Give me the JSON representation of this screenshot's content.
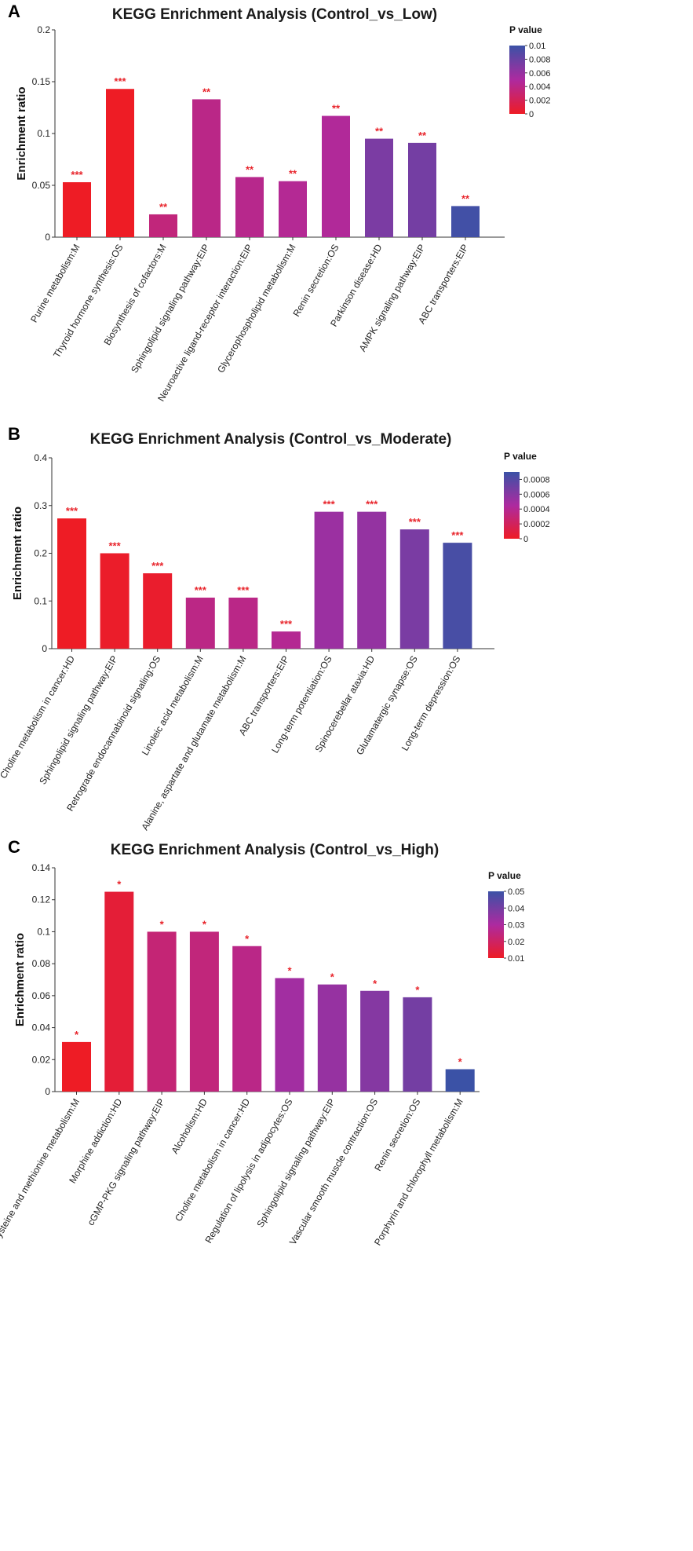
{
  "colors": {
    "low": "#ee1c25",
    "mid": "#ad2aa0",
    "high": "#3b52a6",
    "sig": "#e8242b"
  },
  "chart_data": [
    {
      "type": "bar",
      "panel_label": "A",
      "title": "KEGG Enrichment Analysis (Control_vs_Low)",
      "xlabel": "",
      "ylabel": "Enrichment ratio",
      "ylim": [
        0,
        0.2
      ],
      "yticks": [
        0,
        0.05,
        0.1,
        0.15,
        0.2
      ],
      "ytick_labels": [
        "0",
        "0.05",
        "0.1",
        "0.15",
        "0.2"
      ],
      "categories": [
        "Purine metabolism:M",
        "Thyroid hormone synthesis:OS",
        "Biosynthesis of cofactors:M",
        "Sphingolipid signaling pathway:EIP",
        "Neuroactive ligand-receptor interaction:EIP",
        "Glycerophospholipid metabolism:M",
        "Renin secretion:OS",
        "Parkinson disease:HD",
        "AMPK signaling pathway:EIP",
        "ABC transporters:EIP"
      ],
      "values": [
        0.053,
        0.143,
        0.022,
        0.133,
        0.058,
        0.054,
        0.117,
        0.095,
        0.091,
        0.03
      ],
      "pvalues": [
        0.0,
        0.0,
        0.0035,
        0.004,
        0.0042,
        0.0045,
        0.0047,
        0.0072,
        0.0075,
        0.0097
      ],
      "significance": [
        "***",
        "***",
        "**",
        "**",
        "**",
        "**",
        "**",
        "**",
        "**",
        "**"
      ],
      "legend": {
        "title": "P value",
        "placement": "right",
        "range": [
          0,
          0.01
        ],
        "ticks": [
          0,
          0.002,
          0.004,
          0.006,
          0.008,
          0.01
        ],
        "tick_labels": [
          "0",
          "0.002",
          "0.004",
          "0.006",
          "0.008",
          "0.01"
        ]
      }
    },
    {
      "type": "bar",
      "panel_label": "B",
      "title": "KEGG Enrichment Analysis (Control_vs_Moderate)",
      "xlabel": "",
      "ylabel": "Enrichment ratio",
      "ylim": [
        0,
        0.4
      ],
      "yticks": [
        0,
        0.1,
        0.2,
        0.3,
        0.4
      ],
      "ytick_labels": [
        "0",
        "0.1",
        "0.2",
        "0.3",
        "0.4"
      ],
      "categories": [
        "Choline metabolism in cancer:HD",
        "Sphingolipid signaling pathway:EIP",
        "Retrograde endocannabinoid signaling:OS",
        "Linoleic acid metabolism:M",
        "Alanine, aspartate and glutamate metabolism:M",
        "ABC transporters:EIP",
        "Long-term potentiation:OS",
        "Spinocerebellar ataxia:HD",
        "Glutamatergic synapse:OS",
        "Long-term depression:OS"
      ],
      "values": [
        0.273,
        0.2,
        0.158,
        0.107,
        0.107,
        0.036,
        0.287,
        0.287,
        0.25,
        0.222
      ],
      "pvalues": [
        0.0,
        2e-05,
        3e-05,
        0.00035,
        0.00036,
        0.0004,
        0.00052,
        0.00055,
        0.00065,
        0.00085
      ],
      "significance": [
        "***",
        "***",
        "***",
        "***",
        "***",
        "***",
        "***",
        "***",
        "***",
        "***"
      ],
      "legend": {
        "title": "P value",
        "placement": "right",
        "range": [
          0,
          0.0009
        ],
        "ticks": [
          0,
          0.0002,
          0.0004,
          0.0006,
          0.0008
        ],
        "tick_labels": [
          "0",
          "0.0002",
          "0.0004",
          "0.0006",
          "0.0008"
        ]
      }
    },
    {
      "type": "bar",
      "panel_label": "C",
      "title": "KEGG Enrichment Analysis (Control_vs_High)",
      "xlabel": "",
      "ylabel": "Enrichment ratio",
      "ylim": [
        0,
        0.14
      ],
      "yticks": [
        0,
        0.02,
        0.04,
        0.06,
        0.08,
        0.1,
        0.12,
        0.14
      ],
      "ytick_labels": [
        "0",
        "0.02",
        "0.04",
        "0.06",
        "0.08",
        "0.1",
        "0.12",
        "0.14"
      ],
      "categories": [
        "Cysteine and methionine metabolism:M",
        "Morphine addiction:HD",
        "cGMP-PKG signaling pathway:EIP",
        "Alcoholism:HD",
        "Choline metabolism in cancer:HD",
        "Regulation of lipolysis in adipocytes:OS",
        "Sphingolipid signaling pathway:EIP",
        "Vascular smooth muscle contraction:OS",
        "Renin secretion:OS",
        "Porphyrin and chlorophyll metabolism:M"
      ],
      "values": [
        0.031,
        0.125,
        0.1,
        0.1,
        0.091,
        0.071,
        0.067,
        0.063,
        0.059,
        0.014
      ],
      "pvalues": [
        0.01,
        0.013,
        0.023,
        0.024,
        0.026,
        0.032,
        0.034,
        0.037,
        0.04,
        0.05
      ],
      "significance": [
        "*",
        "*",
        "*",
        "*",
        "*",
        "*",
        "*",
        "*",
        "*",
        "*"
      ],
      "legend": {
        "title": "P value",
        "placement": "right",
        "range": [
          0.01,
          0.05
        ],
        "ticks": [
          0.01,
          0.02,
          0.03,
          0.04,
          0.05
        ],
        "tick_labels": [
          "0.01",
          "0.02",
          "0.03",
          "0.04",
          "0.05"
        ]
      }
    }
  ]
}
